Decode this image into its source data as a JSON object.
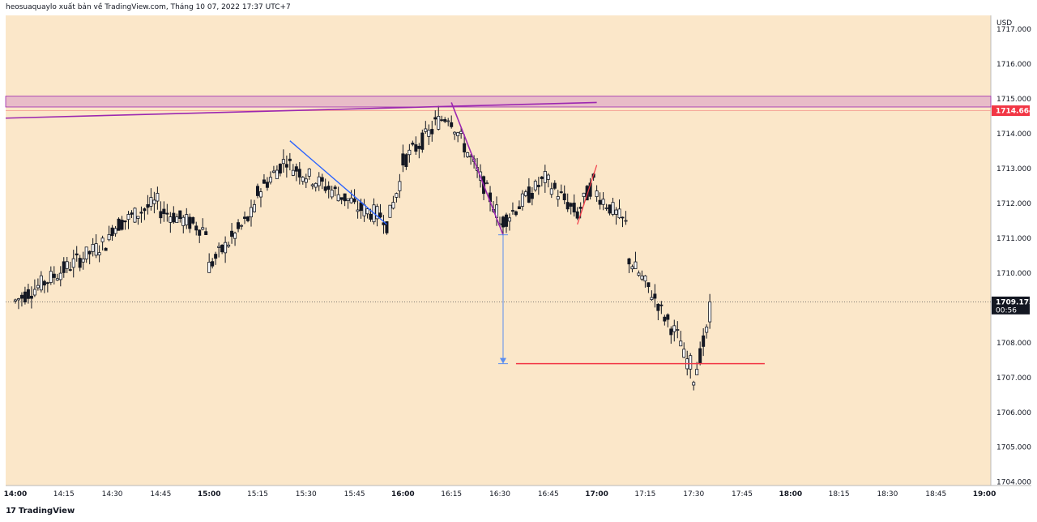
{
  "header": {
    "publisher_line": "heosuaquaylo xuất bản về TradingView.com, Tháng 10 07, 2022 17:37 UTC+7"
  },
  "footer": {
    "logo_mark": "17",
    "logo_text": "TradingView"
  },
  "colors": {
    "background": "#fbe7c9",
    "candle": "#131722",
    "zone_fill": "#e8bcc8",
    "zone_border": "#9c27b0",
    "trendline_purple": "#9c27b0",
    "blue_line": "#2962ff",
    "red_line": "#f23645",
    "price_line": "#f6a89a",
    "price_tag": "#f23645",
    "last_price_tag": "#131722",
    "measure_arrow": "#5b8def"
  },
  "chart_data": {
    "type": "candlestick",
    "currency": "USD",
    "y_range": [
      1703.9,
      1717.4
    ],
    "y_ticks": [
      "1717.000",
      "1716.000",
      "1715.000",
      "1714.000",
      "1713.000",
      "1712.000",
      "1711.000",
      "1710.000",
      "1708.000",
      "1707.000",
      "1706.000",
      "1705.000",
      "1704.000"
    ],
    "x_ticks": [
      "14:00",
      "14:15",
      "14:30",
      "14:45",
      "15:00",
      "15:15",
      "15:30",
      "15:45",
      "16:00",
      "16:15",
      "16:30",
      "16:45",
      "17:00",
      "17:15",
      "17:30",
      "17:45",
      "18:00",
      "18:15",
      "18:30",
      "18:45",
      "19:00"
    ],
    "resistance_zone": {
      "low": 1714.77,
      "high": 1715.08
    },
    "marked_price": {
      "value": 1714.664,
      "label": "1714.664"
    },
    "last_price": {
      "value": 1709.175,
      "label": "1709.175",
      "countdown": "00:56"
    },
    "target_level": 1707.4,
    "anchor_points": [
      {
        "t": "14:00",
        "o": 1709.5,
        "h": 1710.3,
        "l": 1708.9,
        "c": 1709.2
      },
      {
        "t": "14:30",
        "o": 1711.0,
        "h": 1711.8,
        "l": 1710.4,
        "c": 1711.3
      },
      {
        "t": "14:45",
        "o": 1712.1,
        "h": 1712.7,
        "l": 1711.6,
        "c": 1711.8
      },
      {
        "t": "15:00",
        "o": 1711.2,
        "h": 1711.5,
        "l": 1709.5,
        "c": 1710.2
      },
      {
        "t": "15:15",
        "o": 1711.9,
        "h": 1712.6,
        "l": 1711.4,
        "c": 1712.3
      },
      {
        "t": "15:25",
        "o": 1713.4,
        "h": 1713.7,
        "l": 1712.9,
        "c": 1713.1
      },
      {
        "t": "15:45",
        "o": 1712.0,
        "h": 1712.3,
        "l": 1711.7,
        "c": 1711.9
      },
      {
        "t": "15:55",
        "o": 1711.6,
        "h": 1711.9,
        "l": 1711.3,
        "c": 1711.4
      },
      {
        "t": "16:00",
        "o": 1712.9,
        "h": 1713.4,
        "l": 1712.5,
        "c": 1713.2
      },
      {
        "t": "16:10",
        "o": 1714.2,
        "h": 1714.5,
        "l": 1713.9,
        "c": 1714.3
      },
      {
        "t": "16:15",
        "o": 1714.6,
        "h": 1714.8,
        "l": 1714.2,
        "c": 1714.4
      },
      {
        "t": "16:30",
        "o": 1711.6,
        "h": 1712.0,
        "l": 1711.1,
        "c": 1711.4
      },
      {
        "t": "16:45",
        "o": 1712.8,
        "h": 1713.0,
        "l": 1712.3,
        "c": 1712.6
      },
      {
        "t": "16:55",
        "o": 1711.6,
        "h": 1712.0,
        "l": 1711.4,
        "c": 1711.9
      },
      {
        "t": "17:00",
        "o": 1712.8,
        "h": 1713.1,
        "l": 1712.2,
        "c": 1712.3
      },
      {
        "t": "17:10",
        "o": 1711.3,
        "h": 1711.5,
        "l": 1710.2,
        "c": 1710.4
      },
      {
        "t": "17:20",
        "o": 1709.0,
        "h": 1709.4,
        "l": 1708.6,
        "c": 1708.9
      },
      {
        "t": "17:27",
        "o": 1707.9,
        "h": 1708.2,
        "l": 1707.3,
        "c": 1707.6
      },
      {
        "t": "17:30",
        "o": 1707.3,
        "h": 1707.7,
        "l": 1706.3,
        "c": 1707.0
      },
      {
        "t": "17:35",
        "o": 1708.6,
        "h": 1709.4,
        "l": 1708.4,
        "c": 1709.175
      }
    ]
  }
}
